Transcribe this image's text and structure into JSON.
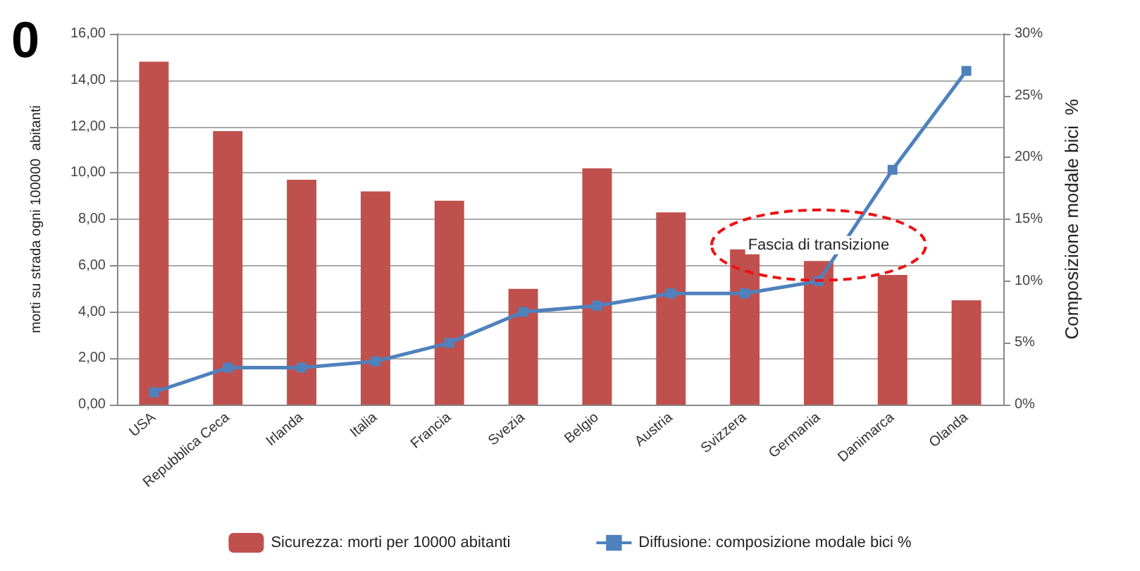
{
  "chart_data": {
    "type": "bar",
    "categories": [
      "USA",
      "Repubblica Ceca",
      "Irlanda",
      "Italia",
      "Francia",
      "Svezia",
      "Belgio",
      "Austria",
      "Svizzera",
      "Germania",
      "Danimarca",
      "Olanda"
    ],
    "series": [
      {
        "name": "Sicurezza: morti per 10000 abitanti",
        "color": "#c0504d",
        "values": [
          14.8,
          11.8,
          9.7,
          9.2,
          8.8,
          5.0,
          10.2,
          8.3,
          6.7,
          6.2,
          5.6,
          4.5
        ]
      },
      {
        "name": "Diffusione: composizione modale bici %",
        "type": "line",
        "axis": "y2",
        "color": "#4f81bd",
        "marker": "square",
        "values": [
          1,
          3,
          3,
          3.5,
          5,
          7.5,
          8,
          9,
          9,
          10,
          19,
          27
        ]
      }
    ],
    "ylabel": "morti su strada ogni 100000  abitanti",
    "y2label": "Composizione modale bici  %",
    "ylim": [
      0,
      16
    ],
    "yticks": [
      {
        "value": 0,
        "label": "0,00"
      },
      {
        "value": 2,
        "label": "2,00"
      },
      {
        "value": 4,
        "label": "4,00"
      },
      {
        "value": 6,
        "label": "6,00"
      },
      {
        "value": 8,
        "label": "8,00"
      },
      {
        "value": 10,
        "label": "10,00"
      },
      {
        "value": 12,
        "label": "12,00"
      },
      {
        "value": 14,
        "label": "14,00"
      },
      {
        "value": 16,
        "label": "16,00"
      }
    ],
    "y2lim": [
      0,
      30
    ],
    "y2ticks": [
      {
        "value": 0,
        "label": "0%"
      },
      {
        "value": 5,
        "label": "5%"
      },
      {
        "value": 10,
        "label": "10%"
      },
      {
        "value": 15,
        "label": "15%"
      },
      {
        "value": 20,
        "label": "20%"
      },
      {
        "value": 25,
        "label": "25%"
      },
      {
        "value": 30,
        "label": "30%"
      }
    ],
    "annotations": [
      "0",
      "Fascia di transizione"
    ],
    "grid": "y",
    "legend": "bottom"
  }
}
